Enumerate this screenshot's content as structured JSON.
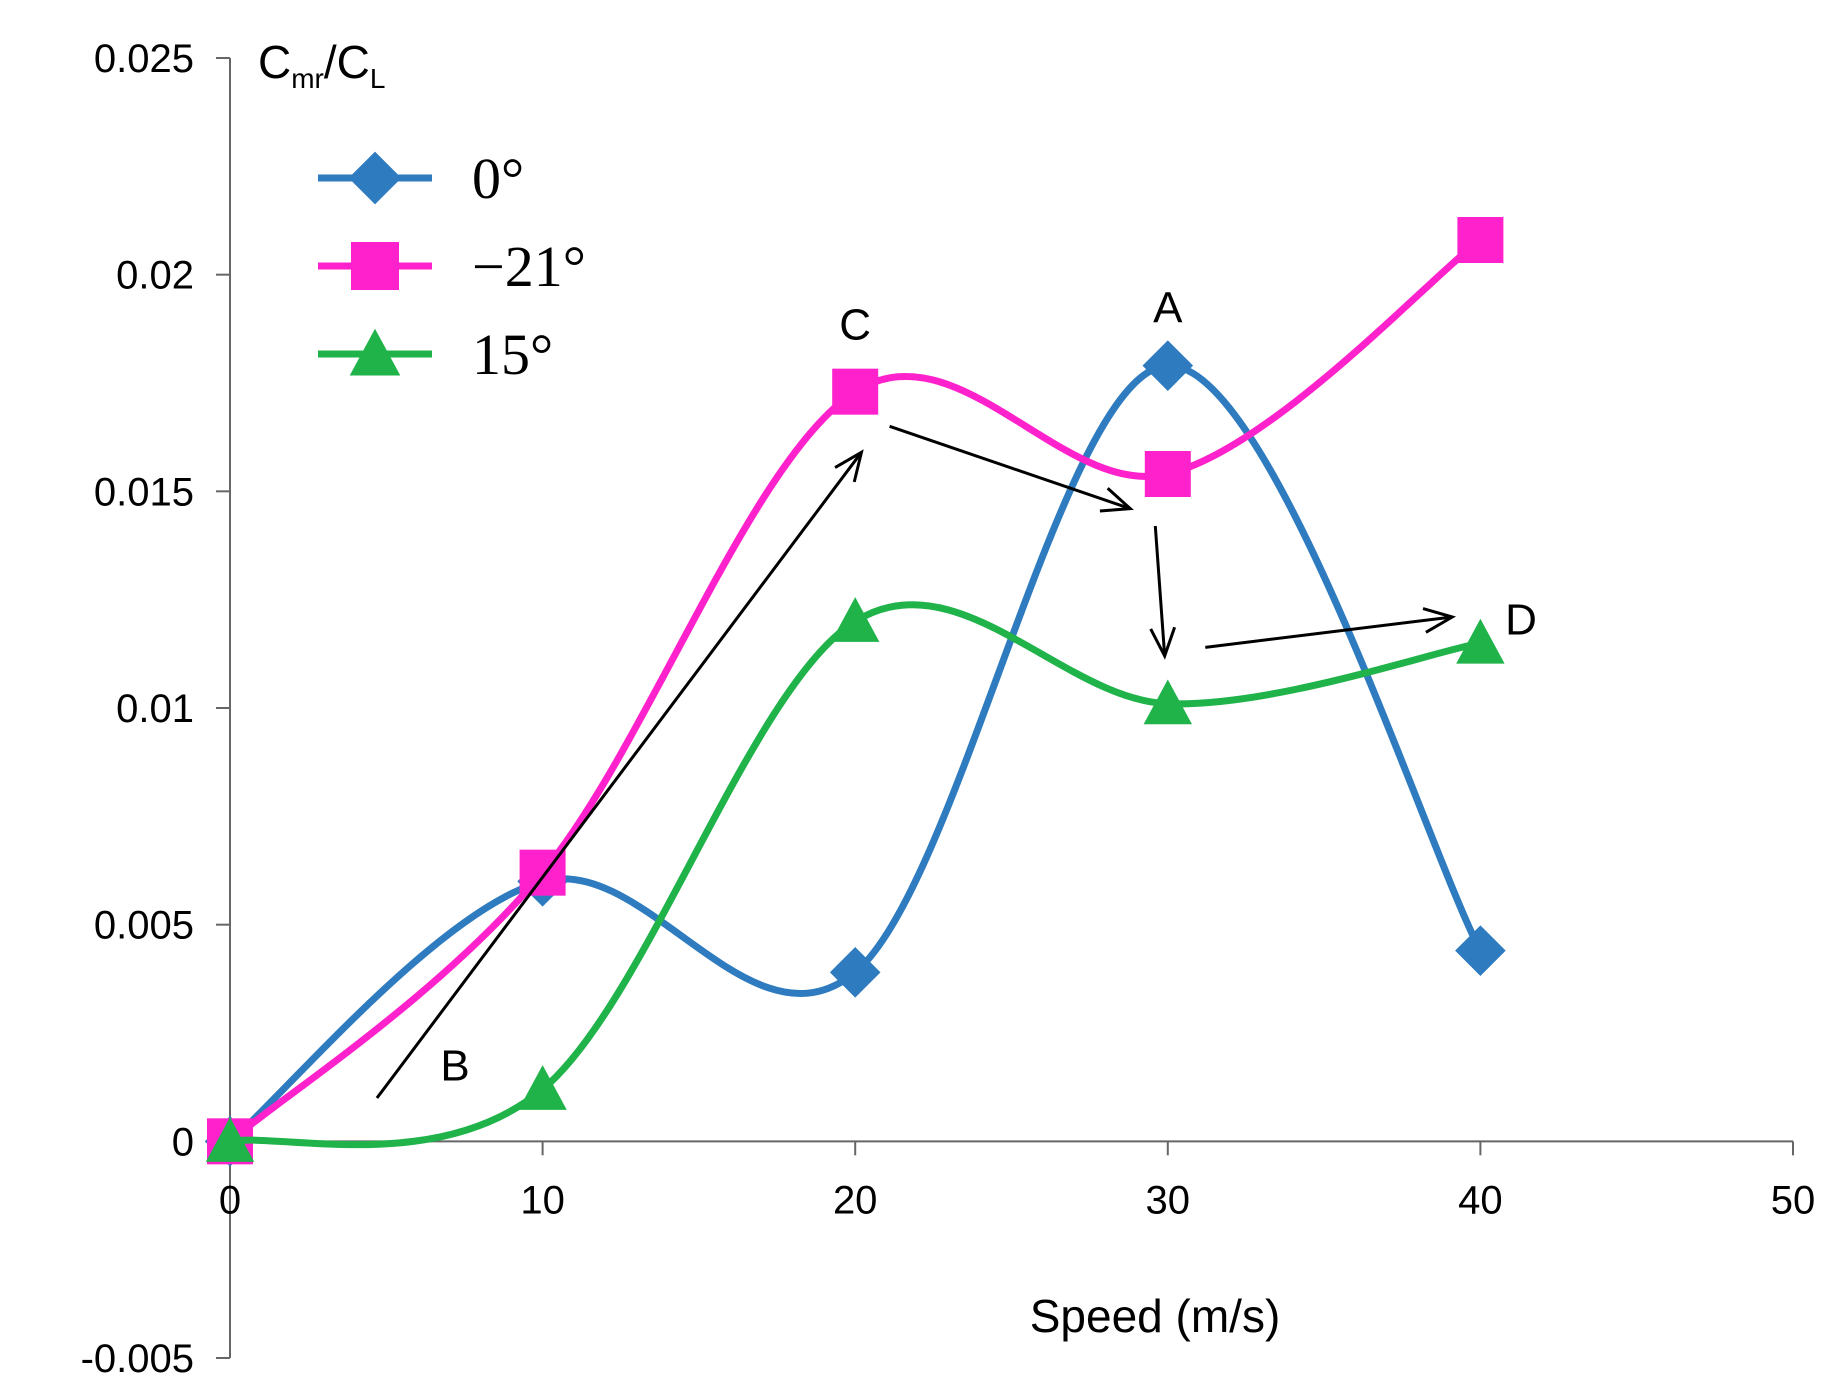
{
  "chart_data": {
    "type": "line",
    "title": "",
    "xlabel": "Speed (m/s)",
    "ylabel": "Cₘᵣ/Cʟ",
    "ylabel_parts": {
      "base1": "C",
      "sub1": "mr",
      "slash": "/",
      "base2": "C",
      "sub2": "L"
    },
    "x": [
      0,
      10,
      20,
      30,
      40
    ],
    "xlim": [
      0,
      50
    ],
    "ylim": [
      -0.005,
      0.025
    ],
    "x_ticks": [
      0,
      10,
      20,
      30,
      40,
      50
    ],
    "x_tick_labels": [
      "0",
      "10",
      "20",
      "30",
      "40",
      "50"
    ],
    "y_ticks": [
      -0.005,
      0,
      0.005,
      0.01,
      0.015,
      0.02,
      0.025
    ],
    "y_tick_labels": [
      "-0.005",
      "0",
      "0.005",
      "0.01",
      "0.015",
      "0.02",
      "0.025"
    ],
    "grid": false,
    "smoothed": true,
    "legend_position": "top-left",
    "series": [
      {
        "name": "0°",
        "color": "#2e7bbf",
        "marker": "diamond",
        "values": [
          0,
          0.006,
          0.0039,
          0.0179,
          0.0044
        ]
      },
      {
        "name": "−21°",
        "color": "#ff22cc",
        "marker": "square",
        "values": [
          0,
          0.0062,
          0.0173,
          0.0154,
          0.0208
        ]
      },
      {
        "name": "15°",
        "color": "#1fb34a",
        "marker": "triangle",
        "values": [
          0,
          0.0012,
          0.012,
          0.0101,
          0.0115
        ]
      }
    ],
    "annotations": [
      {
        "text": "A",
        "x": 30,
        "y": 0.0189
      },
      {
        "text": "B",
        "x": 7.2,
        "y": 0.0014
      },
      {
        "text": "C",
        "x": 20,
        "y": 0.0185
      },
      {
        "text": "D",
        "x": 41.3,
        "y": 0.0117
      }
    ],
    "arrows": [
      {
        "from": [
          4.7,
          0.001
        ],
        "to": [
          20.2,
          0.0159
        ]
      },
      {
        "from": [
          21.1,
          0.0165
        ],
        "to": [
          28.8,
          0.0146
        ]
      },
      {
        "from": [
          29.6,
          0.0142
        ],
        "to": [
          29.9,
          0.0112
        ]
      },
      {
        "from": [
          31.2,
          0.0114
        ],
        "to": [
          39.1,
          0.0121
        ]
      }
    ]
  }
}
